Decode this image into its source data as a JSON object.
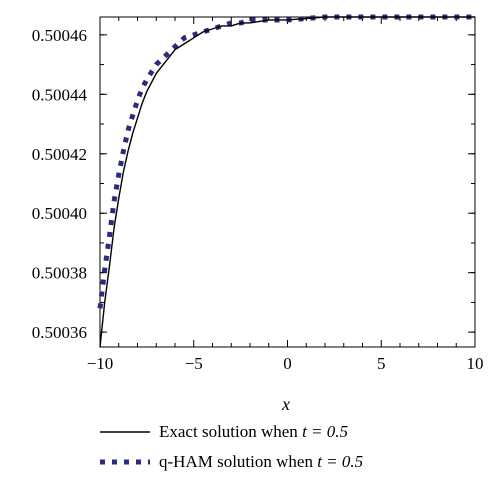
{
  "chart_data": {
    "type": "line",
    "title": "",
    "xlabel": "x",
    "ylabel": "",
    "xlim": [
      -10,
      10
    ],
    "ylim": [
      0.500355,
      0.500466
    ],
    "x_ticks": [
      -10,
      -5,
      0,
      5,
      10
    ],
    "x_tick_labels": [
      "−10",
      "−5",
      "0",
      "5",
      "10"
    ],
    "y_ticks": [
      0.50036,
      0.50038,
      0.5004,
      0.50042,
      0.50044,
      0.50046
    ],
    "y_tick_labels": [
      "0.50036",
      "0.50038",
      "0.50040",
      "0.50042",
      "0.50044",
      "0.50046"
    ],
    "grid": false,
    "legend_position": "bottom",
    "series": [
      {
        "name": "Exact solution when t = 0.5",
        "legend_text": "Exact solution when ",
        "legend_param": "t = 0.5",
        "style": "solid",
        "color": "#000000",
        "x": [
          -10,
          -9.75,
          -9.5,
          -9.25,
          -9,
          -8.75,
          -8.5,
          -8.25,
          -8,
          -7.75,
          -7.5,
          -7,
          -6.5,
          -6,
          -5.5,
          -5,
          -4.5,
          -4,
          -3.5,
          -3,
          -2.5,
          -2,
          -1,
          0,
          2,
          4,
          6,
          8,
          10
        ],
        "values": [
          0.500355,
          0.50037,
          0.500382,
          0.500395,
          0.500405,
          0.500414,
          0.500421,
          0.500427,
          0.500432,
          0.500437,
          0.500441,
          0.500447,
          0.500451,
          0.500455,
          0.500457,
          0.500459,
          0.500461,
          0.500462,
          0.500463,
          0.500463,
          0.500464,
          0.500464,
          0.500465,
          0.500465,
          0.500466,
          0.500466,
          0.500466,
          0.500466,
          0.500466
        ]
      },
      {
        "name": "q-HAM solution when t = 0.5",
        "legend_text": "q-HAM solution when ",
        "legend_param": "t = 0.5",
        "style": "dotted",
        "color": "#2b2d7c",
        "x": [
          -10,
          -9.75,
          -9.5,
          -9.25,
          -9,
          -8.75,
          -8.5,
          -8.25,
          -8,
          -7.75,
          -7.5,
          -7,
          -6.5,
          -6,
          -5.5,
          -5,
          -4.5,
          -4,
          -3.5,
          -3,
          -2.5,
          -2,
          -1,
          0,
          2,
          4,
          6,
          8,
          10
        ],
        "values": [
          0.500368,
          0.500381,
          0.500392,
          0.500404,
          0.500413,
          0.500421,
          0.500428,
          0.500433,
          0.500438,
          0.500442,
          0.500445,
          0.50045,
          0.500453,
          0.500456,
          0.500459,
          0.50046,
          0.500461,
          0.500462,
          0.500463,
          0.500464,
          0.500464,
          0.500465,
          0.500465,
          0.500465,
          0.500466,
          0.500466,
          0.500466,
          0.500466,
          0.500466
        ]
      }
    ]
  }
}
